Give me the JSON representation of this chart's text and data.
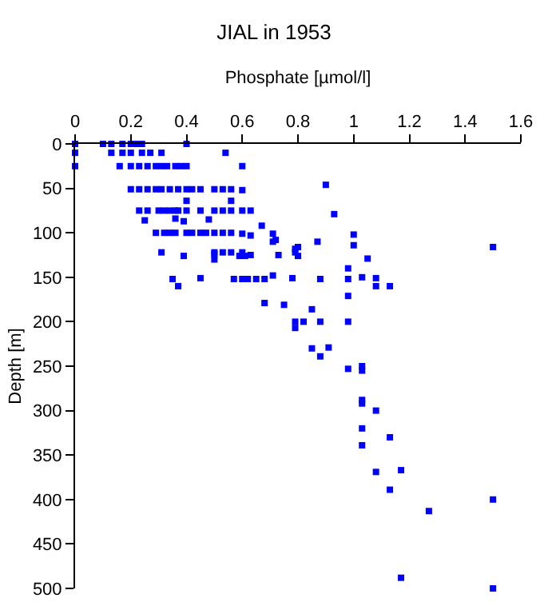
{
  "chart_data": {
    "type": "scatter",
    "title": "JIAL in 1953",
    "xlabel": "Phosphate [µmol/l]",
    "ylabel": "Depth [m]",
    "x": [
      0,
      0.1,
      0.13,
      0.17,
      0.2,
      0.22,
      0.24,
      0.4,
      0,
      0.13,
      0.17,
      0.2,
      0.24,
      0.27,
      0.31,
      0.54,
      0,
      0.16,
      0.2,
      0.23,
      0.26,
      0.29,
      0.31,
      0.33,
      0.36,
      0.38,
      0.4,
      0.6,
      0.9,
      0.2,
      0.23,
      0.26,
      0.29,
      0.31,
      0.34,
      0.37,
      0.4,
      0.42,
      0.45,
      0.5,
      0.53,
      0.56,
      0.6,
      0.4,
      0.56,
      0.93,
      0.23,
      0.26,
      0.3,
      0.32,
      0.34,
      0.36,
      0.37,
      0.4,
      0.45,
      0.5,
      0.53,
      0.56,
      0.6,
      0.63,
      0.25,
      0.36,
      0.39,
      0.48,
      0.67,
      0.29,
      0.32,
      0.34,
      0.36,
      0.4,
      0.42,
      0.45,
      0.47,
      0.5,
      0.53,
      0.56,
      0.6,
      0.63,
      0.71,
      0.71,
      0.8,
      0.87,
      1.0,
      1.0,
      1.5,
      0.31,
      0.5,
      0.53,
      0.56,
      0.6,
      0.72,
      0.79,
      0.79,
      0.39,
      0.5,
      0.5,
      0.59,
      0.61,
      0.63,
      0.73,
      0.8,
      1.05,
      0.35,
      0.37,
      0.45,
      0.57,
      0.6,
      0.62,
      0.65,
      0.68,
      0.71,
      0.78,
      0.88,
      0.98,
      0.98,
      1.03,
      1.08,
      1.08,
      1.13,
      0.68,
      0.75,
      0.85,
      0.98,
      0.79,
      0.79,
      0.82,
      0.88,
      0.98,
      0.85,
      0.91,
      0.88,
      0.98,
      1.03,
      1.03,
      1.03,
      1.03,
      1.08,
      1.03,
      1.13,
      1.03,
      1.08,
      1.17,
      1.13,
      1.5,
      1.27,
      1.17,
      1.5
    ],
    "values": [
      0,
      0,
      0,
      0,
      0,
      0,
      0,
      0,
      10,
      10,
      10,
      10,
      10,
      10,
      10,
      10,
      25,
      25,
      25,
      25,
      25,
      25,
      25,
      25,
      25,
      25,
      25,
      25,
      46,
      51,
      51,
      51,
      51,
      51,
      51,
      51,
      51,
      51,
      51,
      51,
      51,
      51,
      52,
      64,
      64,
      79,
      75,
      75,
      75,
      75,
      75,
      75,
      75,
      75,
      75,
      75,
      75,
      75,
      75,
      75,
      86,
      84,
      87,
      85,
      92,
      100,
      100,
      100,
      100,
      100,
      100,
      100,
      100,
      100,
      100,
      100,
      101,
      103,
      101,
      110,
      116,
      110,
      102,
      114,
      116,
      122,
      122,
      122,
      122,
      122,
      108,
      122,
      118,
      126,
      124,
      130,
      126,
      126,
      125,
      125,
      126,
      129,
      152,
      160,
      151,
      152,
      152,
      152,
      152,
      152,
      148,
      151,
      152,
      152,
      140,
      150,
      151,
      160,
      160,
      179,
      181,
      186,
      171,
      200,
      207,
      200,
      200,
      200,
      230,
      229,
      239,
      253,
      250,
      255,
      288,
      292,
      300,
      320,
      330,
      339,
      369,
      367,
      389,
      400,
      413,
      488,
      500
    ],
    "color": "#0000ff",
    "marker": "square",
    "xlim": [
      0,
      1.6
    ],
    "xticks": [
      0,
      0.2,
      0.4,
      0.6,
      0.8,
      1,
      1.2,
      1.4,
      1.6
    ],
    "ylim": [
      500,
      0
    ],
    "yticks": [
      0,
      50,
      100,
      150,
      200,
      250,
      300,
      350,
      400,
      450,
      500
    ]
  }
}
